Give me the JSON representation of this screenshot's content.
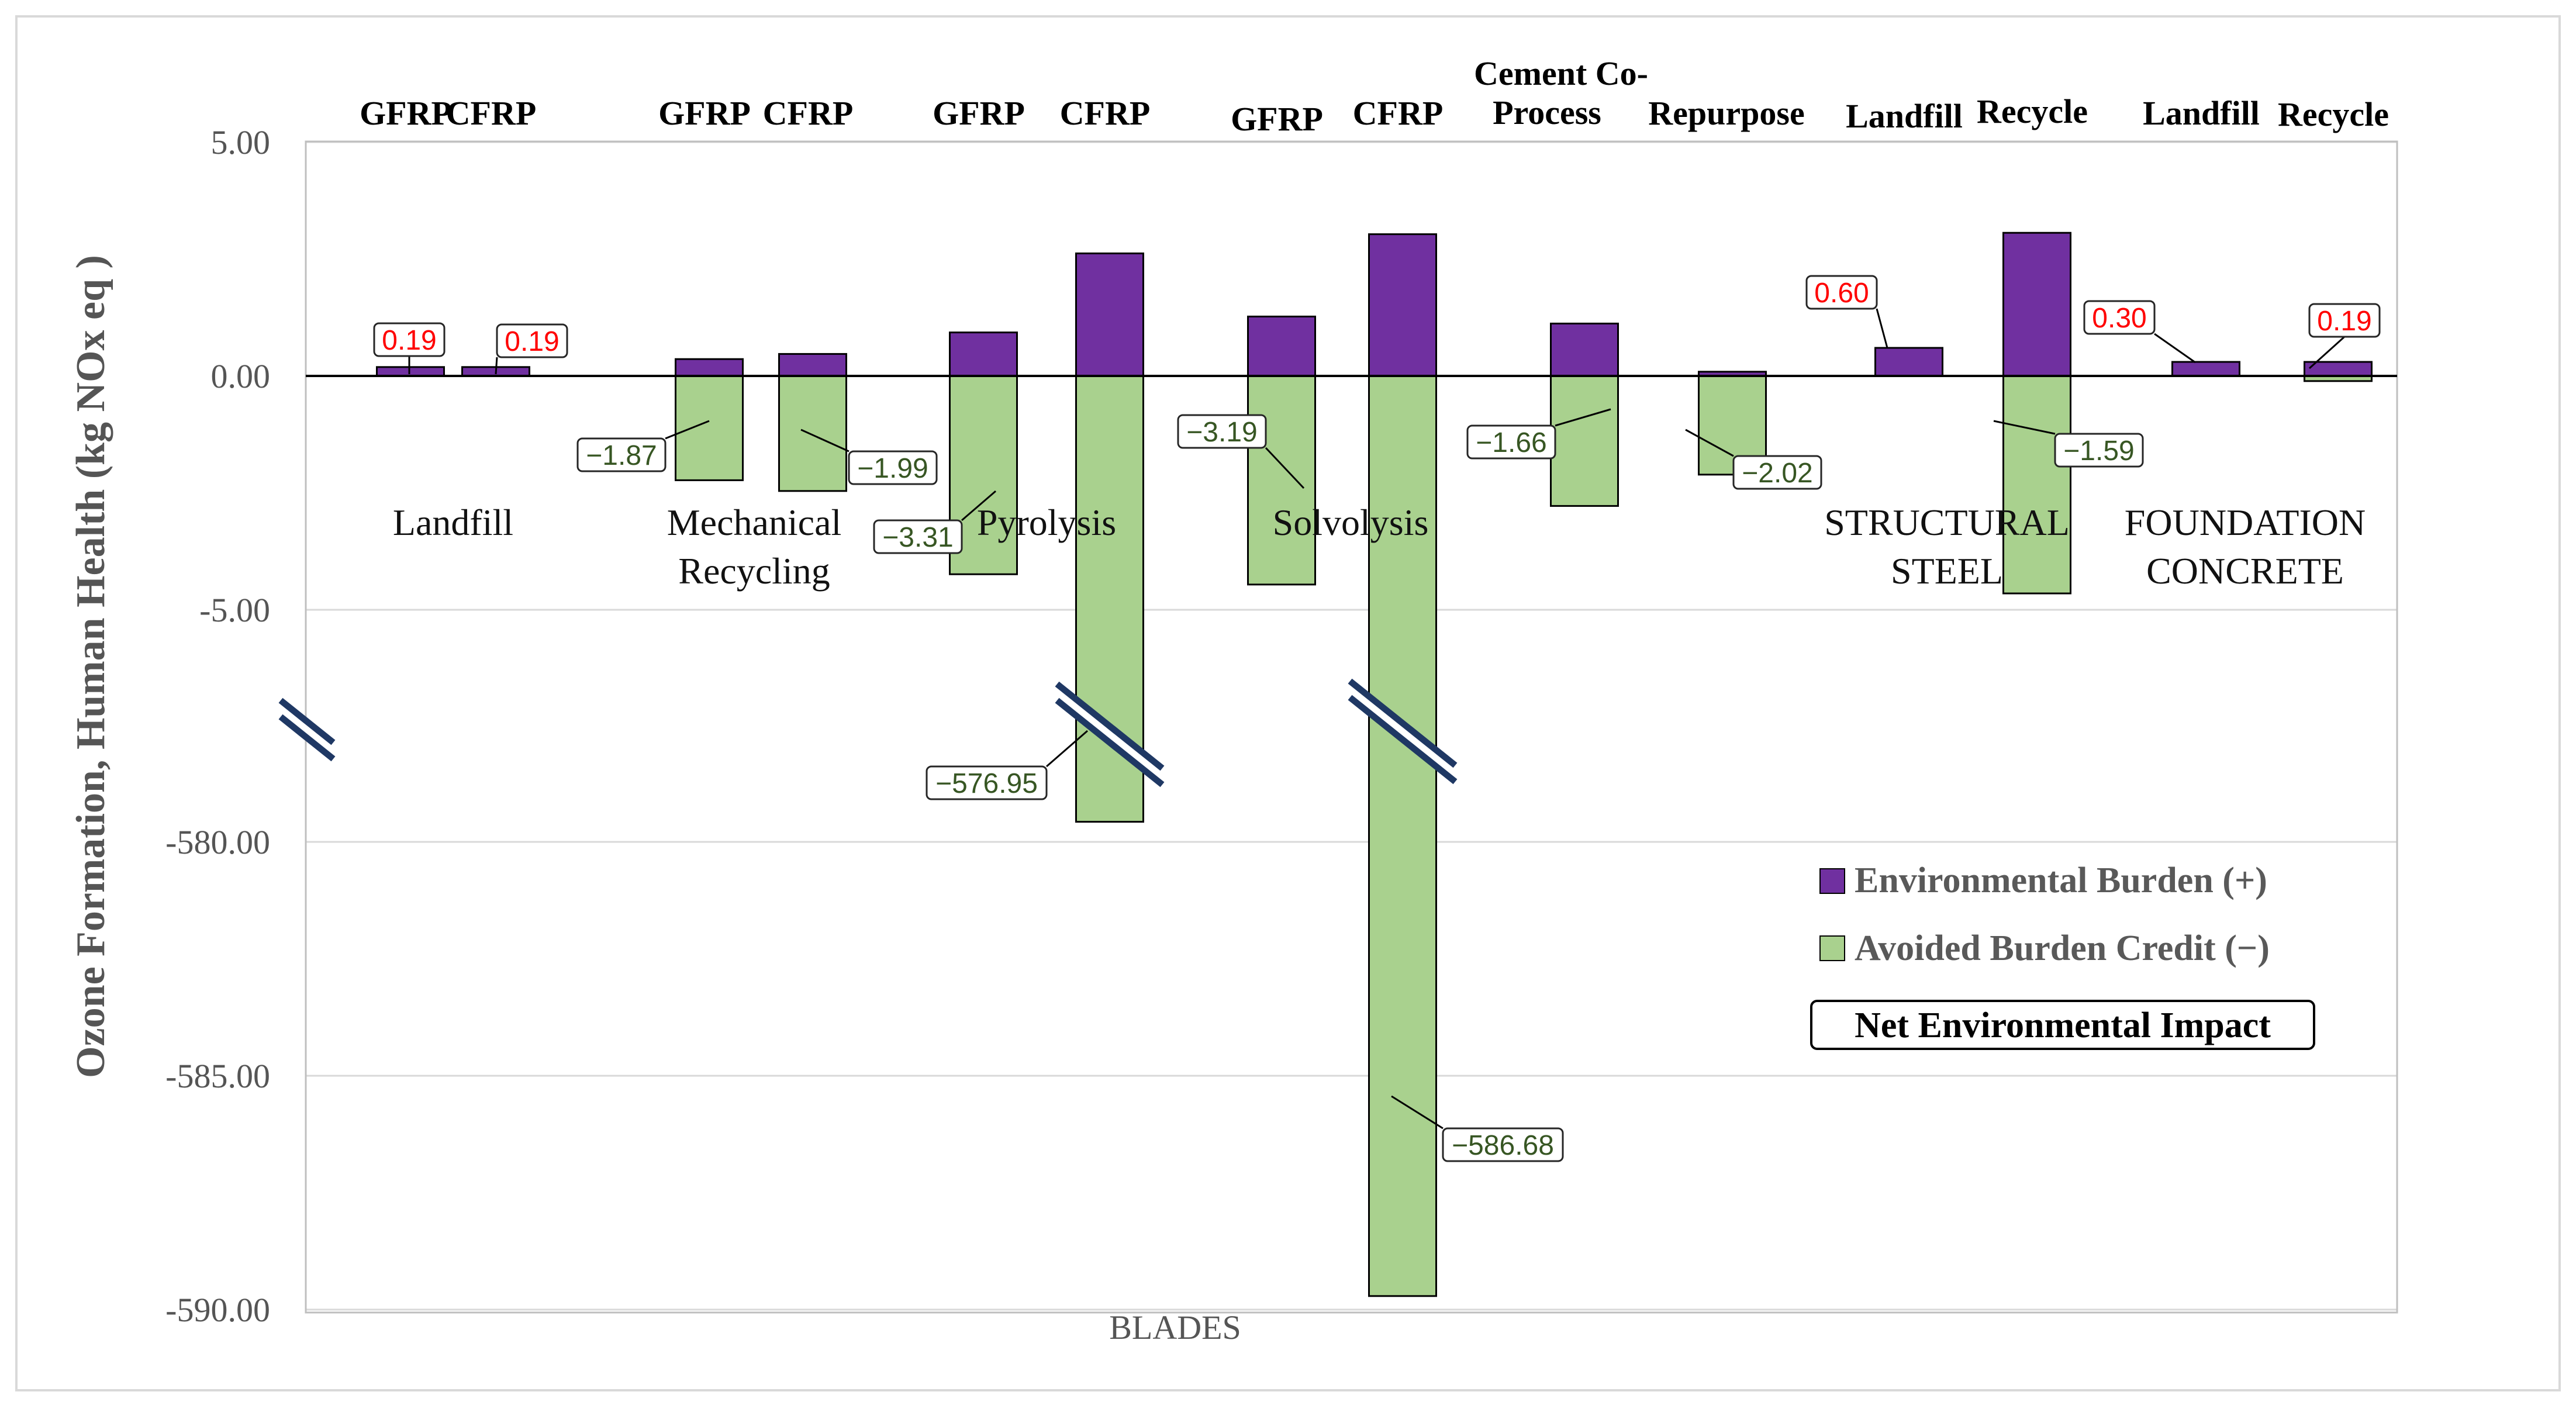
{
  "chart_data": {
    "type": "bar",
    "stacked": true,
    "broken_axis": true,
    "ylabel": "Ozone Formation, Human Health  (kg NOx eq )",
    "xlabel": "BLADES",
    "y_ticks": [
      "5.00",
      "0.00",
      "-5.00",
      "-580.00",
      "-585.00",
      "-590.00"
    ],
    "groups": [
      "Landfill",
      "Mechanical Recycling",
      "Pyrolysis",
      "Solvolysis",
      "",
      "STRUCTURAL STEEL",
      "FOUNDATION CONCRETE"
    ],
    "categories": [
      {
        "label": "GFRP",
        "group": "Landfill",
        "burden": 0.19,
        "credit": 0
      },
      {
        "label": "CFRP",
        "group": "Landfill",
        "burden": 0.19,
        "credit": 0
      },
      {
        "label": "GFRP",
        "group": "Mechanical Recycling",
        "burden": 0.36,
        "credit": -2.23
      },
      {
        "label": "CFRP",
        "group": "Mechanical Recycling",
        "burden": 0.47,
        "credit": -2.46
      },
      {
        "label": "GFRP",
        "group": "Pyrolysis",
        "burden": 0.93,
        "credit": -4.24
      },
      {
        "label": "CFRP",
        "group": "Pyrolysis",
        "burden": 2.62,
        "credit": -579.57
      },
      {
        "label": "GFRP",
        "group": "Solvolysis",
        "burden": 1.27,
        "credit": -4.46
      },
      {
        "label": "CFRP",
        "group": "Solvolysis",
        "burden": 3.03,
        "credit": -589.71
      },
      {
        "label": "Cement Co-Process",
        "group": "",
        "burden": 1.12,
        "credit": -2.78
      },
      {
        "label": "Repurpose",
        "group": "",
        "burden": 0.09,
        "credit": -2.11
      },
      {
        "label": "Landfill",
        "group": "STRUCTURAL STEEL",
        "burden": 0.6,
        "credit": 0
      },
      {
        "label": "Recycle",
        "group": "STRUCTURAL STEEL",
        "burden": 3.06,
        "credit": -4.65
      },
      {
        "label": "Landfill",
        "group": "FOUNDATION CONCRETE",
        "burden": 0.3,
        "credit": 0
      },
      {
        "label": "Recycle",
        "group": "FOUNDATION CONCRETE",
        "burden": 0.3,
        "credit": -0.11
      }
    ],
    "series": [
      {
        "name": "Environmental Burden (+)",
        "color": "#7030a0"
      },
      {
        "name": "Avoided Burden Credit (−)",
        "color": "#a9d18e"
      }
    ],
    "net_labels": [
      {
        "category_index": 0,
        "value": "0.19",
        "sign": "positive"
      },
      {
        "category_index": 1,
        "value": "0.19",
        "sign": "positive"
      },
      {
        "category_index": 2,
        "value": "−1.87",
        "sign": "negative"
      },
      {
        "category_index": 3,
        "value": "−1.99",
        "sign": "negative"
      },
      {
        "category_index": 4,
        "value": "−3.31",
        "sign": "negative"
      },
      {
        "category_index": 5,
        "value": "−576.95",
        "sign": "negative"
      },
      {
        "category_index": 6,
        "value": "−3.19",
        "sign": "negative"
      },
      {
        "category_index": 7,
        "value": "−586.68",
        "sign": "negative"
      },
      {
        "category_index": 8,
        "value": "−1.66",
        "sign": "negative"
      },
      {
        "category_index": 9,
        "value": "−2.02",
        "sign": "negative"
      },
      {
        "category_index": 10,
        "value": "0.60",
        "sign": "positive"
      },
      {
        "category_index": 11,
        "value": "−1.59",
        "sign": "negative"
      },
      {
        "category_index": 12,
        "value": "0.30",
        "sign": "positive"
      },
      {
        "category_index": 13,
        "value": "0.19",
        "sign": "positive"
      }
    ],
    "legend": {
      "position": "bottom-right",
      "items": [
        "Environmental Burden (+)",
        "Avoided Burden Credit (−)"
      ],
      "net_label": "Net Environmental Impact"
    }
  }
}
